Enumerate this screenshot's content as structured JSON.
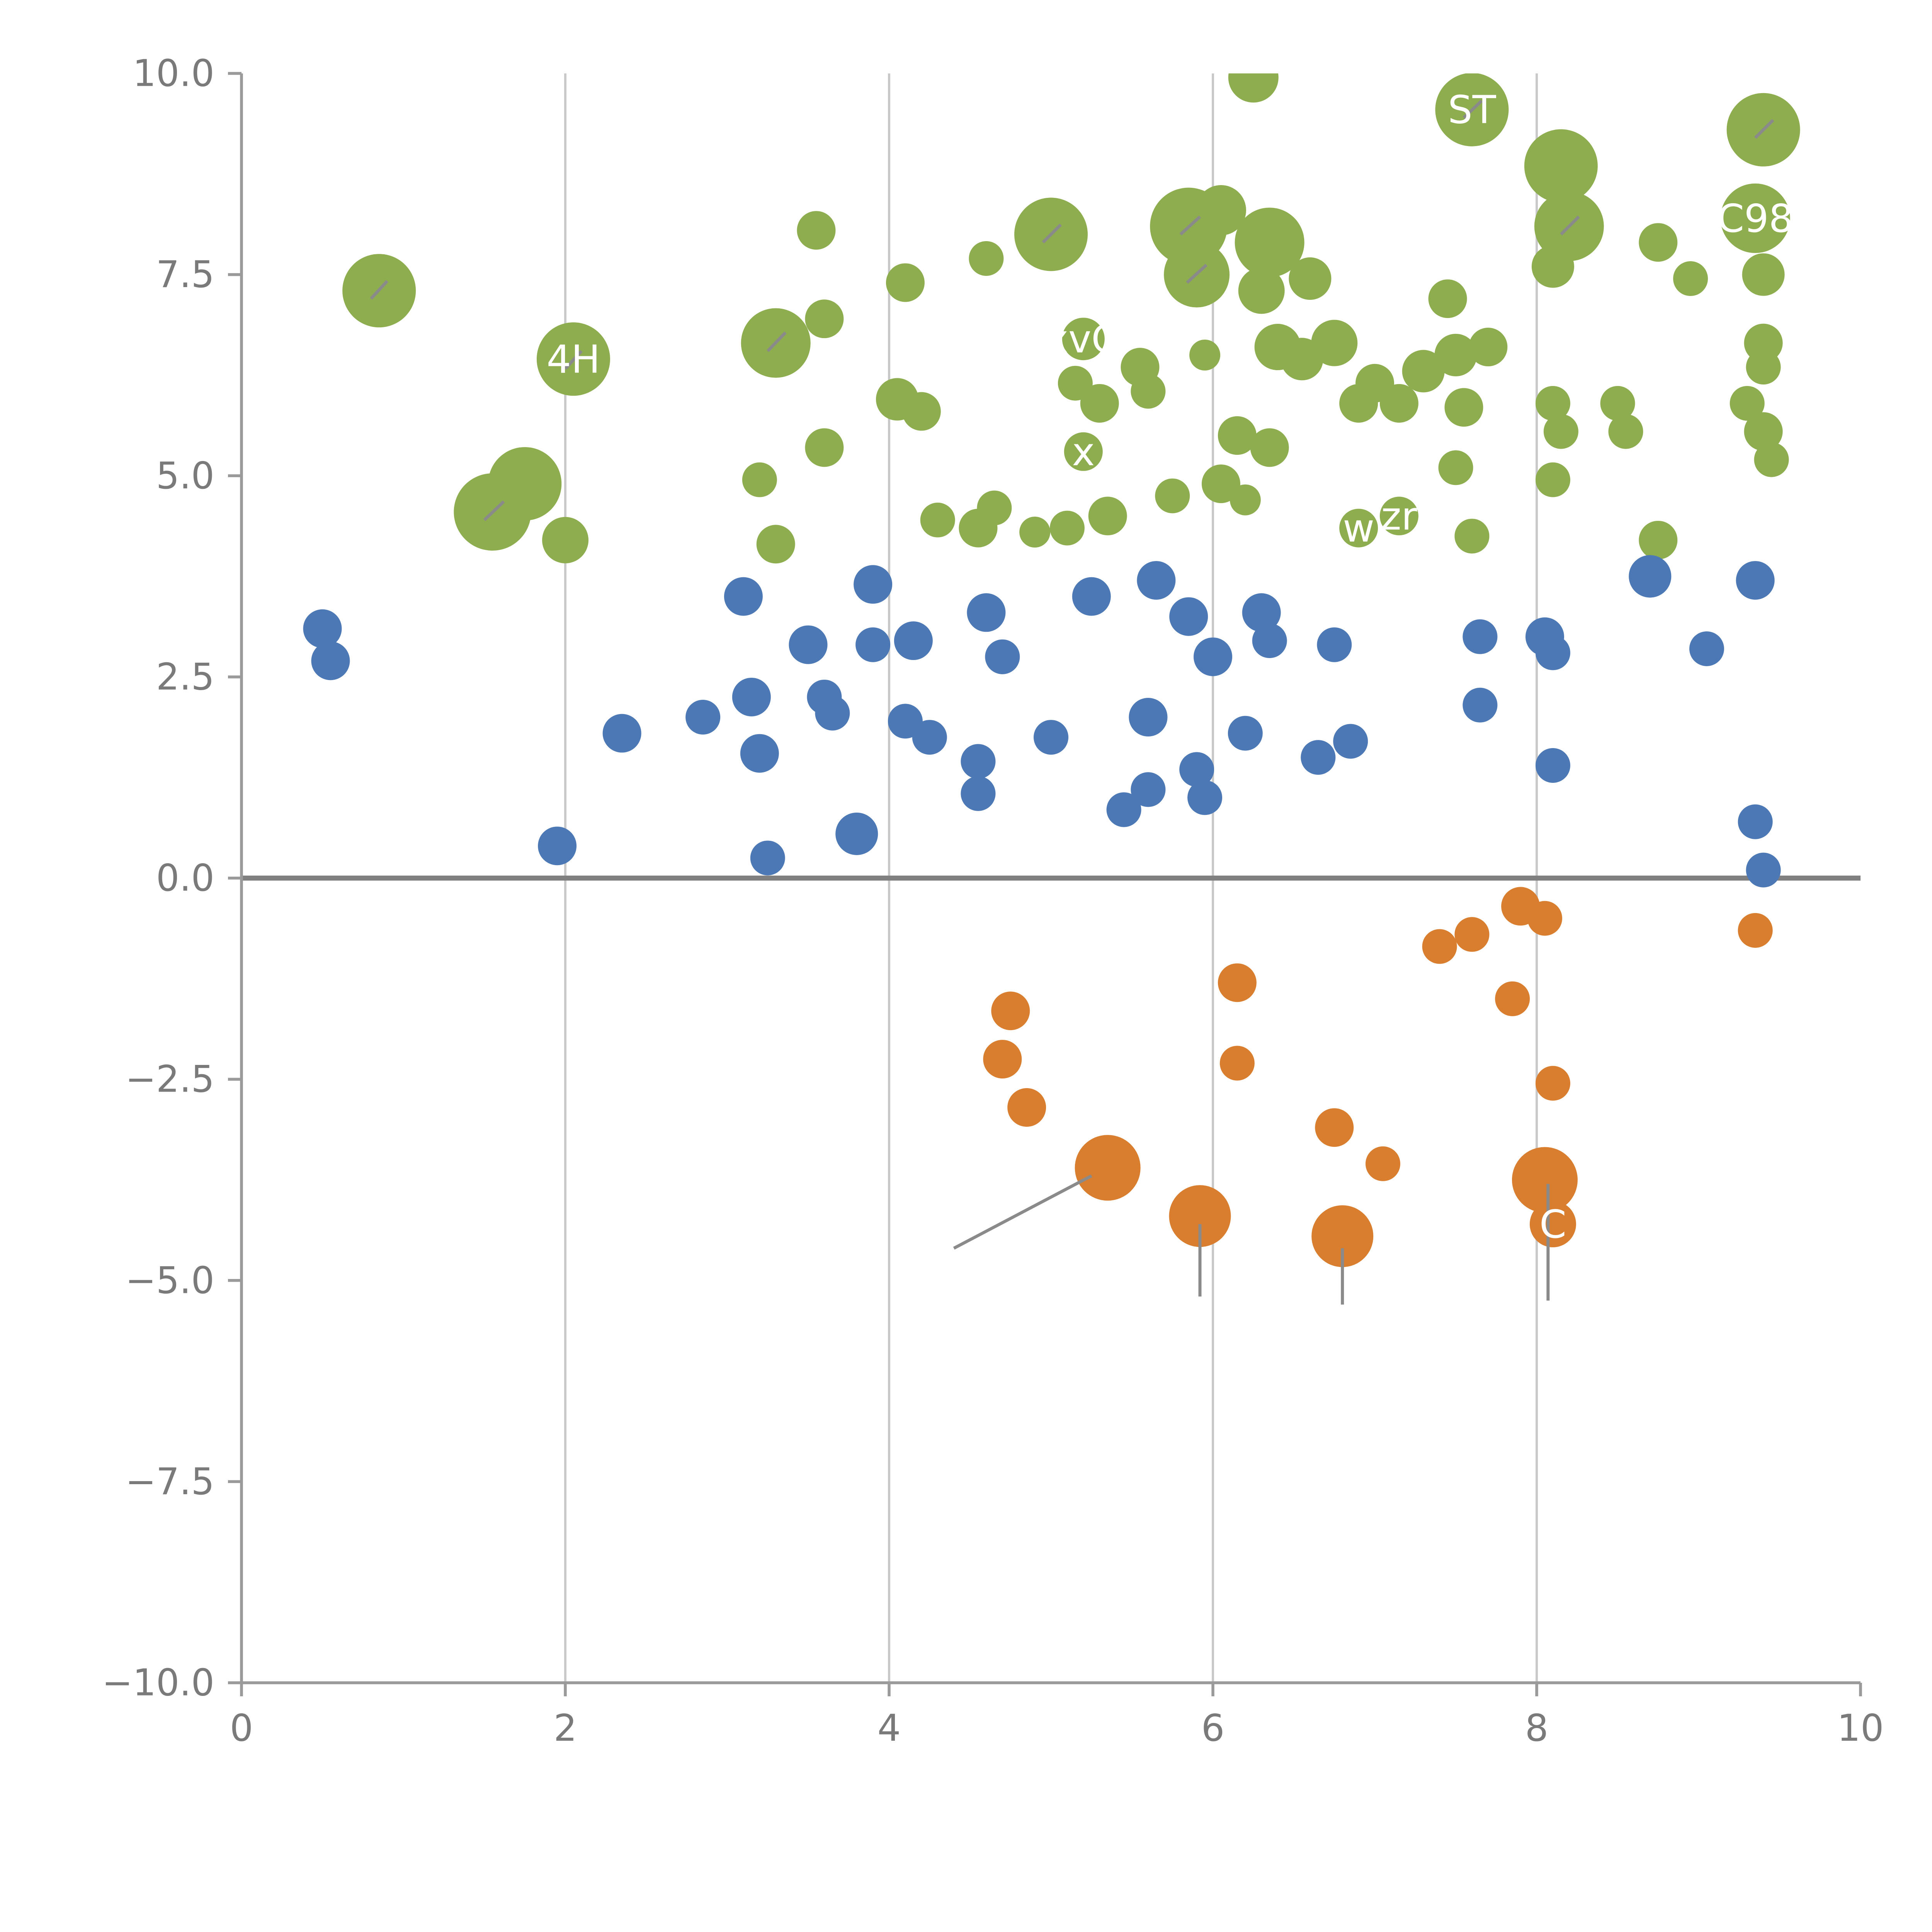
{
  "figure": {
    "background": "#ffffff"
  },
  "chart_data": {
    "type": "scatter",
    "title": "",
    "xlabel": "",
    "ylabel": "",
    "xlim": [
      0,
      10
    ],
    "ylim": [
      -10,
      10
    ],
    "x_ticks": [
      0,
      2,
      4,
      6,
      8,
      10
    ],
    "x_tick_labels": [
      "0",
      "2",
      "4",
      "6",
      "8",
      "10"
    ],
    "y_ticks": [
      -10,
      -7.5,
      -5,
      -2.5,
      0,
      2.5,
      5,
      7.5,
      10
    ],
    "y_tick_labels": [
      "−10.0",
      "−7.5",
      "−5.0",
      "−2.5",
      "0.0",
      "2.5",
      "5.0",
      "7.5",
      "10.0"
    ],
    "grid": "vertical-only",
    "grid_color": "#c9c9c9",
    "spine_color": "#9a9a9a",
    "tick_label_color": "#7a7a7a",
    "zero_line": {
      "y": 0,
      "color": "#808080",
      "width": 2.6
    },
    "point_label_color": "#ffffff",
    "leader_line_color": "#8a8a8a",
    "series": [
      {
        "name": "green",
        "color": "#8DAD4F",
        "points": [
          [
            0.85,
            7.3,
            19
          ],
          [
            1.55,
            4.55,
            20
          ],
          [
            1.75,
            4.9,
            19
          ],
          [
            2.0,
            4.2,
            12
          ],
          [
            2.05,
            6.45,
            19,
            "4H"
          ],
          [
            3.3,
            6.65,
            18
          ],
          [
            3.55,
            8.05,
            10
          ],
          [
            3.6,
            6.95,
            10
          ],
          [
            3.2,
            4.95,
            9
          ],
          [
            3.3,
            4.15,
            10
          ],
          [
            3.6,
            5.35,
            10
          ],
          [
            4.1,
            7.4,
            10
          ],
          [
            4.05,
            5.95,
            11
          ],
          [
            4.2,
            5.8,
            10
          ],
          [
            4.6,
            7.7,
            9
          ],
          [
            4.3,
            4.45,
            9
          ],
          [
            4.55,
            4.35,
            10
          ],
          [
            4.65,
            4.6,
            9
          ],
          [
            5.0,
            8.0,
            19
          ],
          [
            5.2,
            6.7,
            11,
            "xvG"
          ],
          [
            5.15,
            6.15,
            9
          ],
          [
            5.3,
            5.9,
            10
          ],
          [
            5.55,
            6.35,
            10
          ],
          [
            5.6,
            6.05,
            9
          ],
          [
            5.2,
            5.3,
            10,
            "x"
          ],
          [
            5.35,
            4.5,
            10
          ],
          [
            5.1,
            4.35,
            9
          ],
          [
            4.9,
            4.3,
            8
          ],
          [
            5.75,
            4.75,
            9
          ],
          [
            5.85,
            8.1,
            20
          ],
          [
            5.9,
            7.5,
            17
          ],
          [
            6.05,
            8.3,
            13
          ],
          [
            6.35,
            7.9,
            18
          ],
          [
            6.3,
            7.3,
            12
          ],
          [
            6.6,
            7.45,
            11
          ],
          [
            6.75,
            6.65,
            12
          ],
          [
            6.4,
            6.6,
            12
          ],
          [
            6.55,
            6.45,
            11
          ],
          [
            5.95,
            6.5,
            8
          ],
          [
            6.15,
            5.5,
            10
          ],
          [
            6.35,
            5.35,
            10
          ],
          [
            6.05,
            4.9,
            10
          ],
          [
            6.2,
            4.7,
            8
          ],
          [
            6.25,
            9.95,
            13
          ],
          [
            6.9,
            5.9,
            10
          ],
          [
            7.0,
            6.15,
            10
          ],
          [
            6.9,
            4.35,
            10,
            "w"
          ],
          [
            7.15,
            4.5,
            10,
            "zr"
          ],
          [
            7.45,
            7.2,
            10
          ],
          [
            7.6,
            9.55,
            19,
            "ST"
          ],
          [
            7.3,
            6.3,
            11
          ],
          [
            7.5,
            6.5,
            11
          ],
          [
            7.7,
            6.6,
            10
          ],
          [
            7.15,
            5.9,
            10
          ],
          [
            7.55,
            5.85,
            10
          ],
          [
            7.5,
            5.1,
            9
          ],
          [
            7.6,
            4.25,
            9
          ],
          [
            8.15,
            8.85,
            19
          ],
          [
            8.2,
            8.1,
            18
          ],
          [
            8.1,
            7.6,
            11
          ],
          [
            8.75,
            7.9,
            10
          ],
          [
            8.95,
            7.45,
            9
          ],
          [
            8.1,
            5.9,
            9
          ],
          [
            8.15,
            5.55,
            9
          ],
          [
            8.5,
            5.9,
            9
          ],
          [
            8.55,
            5.55,
            9
          ],
          [
            8.1,
            4.95,
            9
          ],
          [
            8.75,
            4.2,
            10
          ],
          [
            9.4,
            9.3,
            19
          ],
          [
            9.35,
            8.2,
            18,
            "C98"
          ],
          [
            9.4,
            7.5,
            11
          ],
          [
            9.4,
            6.65,
            10
          ],
          [
            9.4,
            6.35,
            9
          ],
          [
            9.3,
            5.9,
            9
          ],
          [
            9.4,
            5.55,
            10
          ],
          [
            9.45,
            5.2,
            9
          ]
        ]
      },
      {
        "name": "blue",
        "color": "#4C79B5",
        "points": [
          [
            0.5,
            3.1,
            10
          ],
          [
            0.55,
            2.7,
            10
          ],
          [
            1.95,
            0.4,
            10
          ],
          [
            2.35,
            1.8,
            10
          ],
          [
            2.85,
            2.0,
            9
          ],
          [
            3.1,
            3.5,
            10
          ],
          [
            3.15,
            2.25,
            10
          ],
          [
            3.2,
            1.55,
            10
          ],
          [
            3.25,
            0.25,
            9
          ],
          [
            3.5,
            2.9,
            10
          ],
          [
            3.6,
            2.25,
            9
          ],
          [
            3.65,
            2.05,
            9
          ],
          [
            3.8,
            0.55,
            11
          ],
          [
            3.9,
            3.65,
            10
          ],
          [
            3.9,
            2.9,
            9
          ],
          [
            4.15,
            2.95,
            10
          ],
          [
            4.1,
            1.95,
            9
          ],
          [
            4.25,
            1.75,
            9
          ],
          [
            4.6,
            3.3,
            10
          ],
          [
            4.7,
            2.75,
            9
          ],
          [
            4.55,
            1.45,
            9
          ],
          [
            4.55,
            1.05,
            9
          ],
          [
            5.0,
            1.75,
            9
          ],
          [
            5.25,
            3.5,
            10
          ],
          [
            5.45,
            0.85,
            9
          ],
          [
            5.6,
            1.1,
            9
          ],
          [
            5.6,
            2.0,
            10
          ],
          [
            5.65,
            3.7,
            10
          ],
          [
            5.85,
            3.25,
            10
          ],
          [
            5.9,
            1.35,
            9
          ],
          [
            5.95,
            1.0,
            9
          ],
          [
            6.0,
            2.75,
            10
          ],
          [
            6.2,
            1.8,
            9
          ],
          [
            6.3,
            3.3,
            10
          ],
          [
            6.35,
            2.95,
            9
          ],
          [
            6.65,
            1.5,
            9
          ],
          [
            6.75,
            2.9,
            9
          ],
          [
            6.85,
            1.7,
            9
          ],
          [
            7.65,
            3.0,
            9
          ],
          [
            7.65,
            2.15,
            9
          ],
          [
            8.05,
            3.0,
            10
          ],
          [
            8.1,
            2.8,
            9
          ],
          [
            8.1,
            1.4,
            9
          ],
          [
            8.7,
            3.75,
            11
          ],
          [
            9.05,
            2.85,
            9
          ],
          [
            9.35,
            3.7,
            10
          ],
          [
            9.35,
            0.7,
            9
          ],
          [
            9.4,
            0.1,
            9
          ]
        ]
      },
      {
        "name": "orange",
        "color": "#D97E2E",
        "points": [
          [
            4.75,
            -1.65,
            10
          ],
          [
            4.7,
            -2.25,
            10
          ],
          [
            4.85,
            -2.85,
            10
          ],
          [
            5.35,
            -3.6,
            17
          ],
          [
            5.92,
            -4.2,
            16
          ],
          [
            6.8,
            -4.45,
            16
          ],
          [
            6.15,
            -1.3,
            10
          ],
          [
            6.15,
            -2.3,
            9
          ],
          [
            6.75,
            -3.1,
            10
          ],
          [
            7.05,
            -3.55,
            9
          ],
          [
            7.4,
            -0.85,
            9
          ],
          [
            7.6,
            -0.7,
            9
          ],
          [
            7.9,
            -0.35,
            10
          ],
          [
            8.05,
            -0.5,
            9
          ],
          [
            7.85,
            -1.5,
            9
          ],
          [
            8.05,
            -3.75,
            17
          ],
          [
            8.1,
            -4.3,
            12,
            "C"
          ],
          [
            8.1,
            -2.55,
            9
          ],
          [
            9.35,
            -0.65,
            9
          ]
        ]
      }
    ],
    "annotation_lines": [
      [
        [
          4.4,
          -4.6
        ],
        [
          5.25,
          -3.7
        ]
      ],
      [
        [
          5.92,
          -4.3
        ],
        [
          5.92,
          -5.2
        ]
      ],
      [
        [
          6.8,
          -4.6
        ],
        [
          6.8,
          -5.3
        ]
      ],
      [
        [
          8.07,
          -3.8
        ],
        [
          8.07,
          -5.25
        ]
      ],
      [
        [
          0.8,
          7.2
        ],
        [
          0.9,
          7.42
        ]
      ],
      [
        [
          3.25,
          6.55
        ],
        [
          3.36,
          6.78
        ]
      ],
      [
        [
          1.5,
          4.45
        ],
        [
          1.62,
          4.68
        ]
      ],
      [
        [
          2.0,
          6.33
        ],
        [
          2.1,
          6.55
        ]
      ],
      [
        [
          4.95,
          7.9
        ],
        [
          5.06,
          8.12
        ]
      ],
      [
        [
          5.8,
          8.0
        ],
        [
          5.92,
          8.22
        ]
      ],
      [
        [
          5.84,
          7.4
        ],
        [
          5.96,
          7.62
        ]
      ],
      [
        [
          7.55,
          9.45
        ],
        [
          7.66,
          9.66
        ]
      ],
      [
        [
          8.15,
          8.0
        ],
        [
          8.26,
          8.22
        ]
      ],
      [
        [
          9.35,
          9.2
        ],
        [
          9.46,
          9.42
        ]
      ]
    ]
  }
}
